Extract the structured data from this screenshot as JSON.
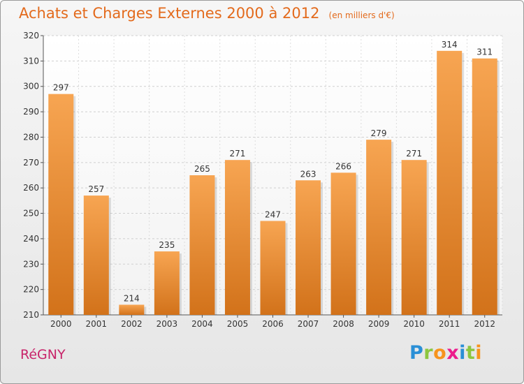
{
  "header": {
    "title": "Achats et Charges Externes 2000 à 2012",
    "subtitle": "(en milliers d'€)"
  },
  "footer": {
    "city": "RéGNY",
    "logo_letters": [
      {
        "ch": "P",
        "color": "#2a8fd6"
      },
      {
        "ch": "r",
        "color": "#8cc63f"
      },
      {
        "ch": "o",
        "color": "#f7941d"
      },
      {
        "ch": "x",
        "color": "#ec1c8c"
      },
      {
        "ch": "i",
        "color": "#2a8fd6"
      },
      {
        "ch": "t",
        "color": "#8cc63f"
      },
      {
        "ch": "i",
        "color": "#f7941d"
      }
    ]
  },
  "chart_data": {
    "type": "bar",
    "title": "Achats et Charges Externes 2000 à 2012",
    "subtitle": "(en milliers d'€)",
    "categories": [
      "2000",
      "2001",
      "2002",
      "2003",
      "2004",
      "2005",
      "2006",
      "2007",
      "2008",
      "2009",
      "2010",
      "2011",
      "2012"
    ],
    "values": [
      297,
      257,
      214,
      235,
      265,
      271,
      247,
      263,
      266,
      279,
      271,
      314,
      311
    ],
    "ylim": [
      210,
      320
    ],
    "yticks": [
      210,
      220,
      230,
      240,
      250,
      260,
      270,
      280,
      290,
      300,
      310,
      320
    ],
    "grid": true,
    "bar_color_top": "#f7a552",
    "bar_color_bottom": "#d2721a"
  }
}
